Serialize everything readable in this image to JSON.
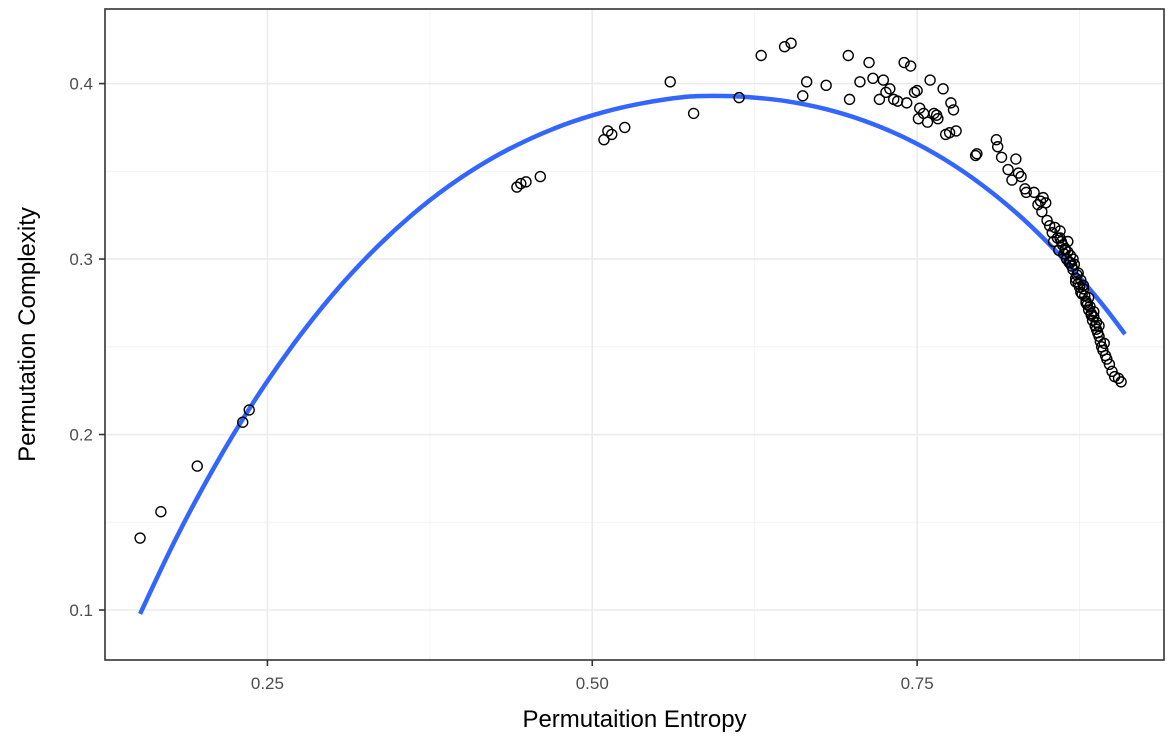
{
  "chart_data": {
    "type": "scatter",
    "title": "",
    "xlabel": "Permutaition Entropy",
    "ylabel": "Permutation Complexity",
    "xlim": [
      0.125,
      0.94
    ],
    "ylim": [
      0.0715,
      0.4425
    ],
    "x_ticks": [
      0.25,
      0.5,
      0.75
    ],
    "x_tick_labels": [
      "0.25",
      "0.50",
      "0.75"
    ],
    "y_ticks": [
      0.1,
      0.2,
      0.3,
      0.4
    ],
    "y_tick_labels": [
      "0.1",
      "0.2",
      "0.3",
      "0.4"
    ],
    "grid": true,
    "legend": "none",
    "colors": {
      "fit_line": "#3366ff",
      "points": "#000000",
      "grid": "#ebebeb",
      "border": "#333333"
    },
    "series": [
      {
        "type": "scatter",
        "x": [
          0.152,
          0.168,
          0.196,
          0.231,
          0.236,
          0.442,
          0.445,
          0.449,
          0.46,
          0.509,
          0.512,
          0.515,
          0.525,
          0.56,
          0.578,
          0.613,
          0.63,
          0.648,
          0.653,
          0.662,
          0.665,
          0.68,
          0.697,
          0.698,
          0.706,
          0.713,
          0.716,
          0.721,
          0.724,
          0.726,
          0.729,
          0.732,
          0.735,
          0.74,
          0.742,
          0.745,
          0.748,
          0.75,
          0.751,
          0.752,
          0.755,
          0.758,
          0.76,
          0.763,
          0.765,
          0.766,
          0.77,
          0.772,
          0.775,
          0.776,
          0.778,
          0.78,
          0.795,
          0.796,
          0.811,
          0.812,
          0.815,
          0.82,
          0.823,
          0.826,
          0.828,
          0.83,
          0.833,
          0.834,
          0.84,
          0.843,
          0.845,
          0.846,
          0.847,
          0.849,
          0.85,
          0.852,
          0.854,
          0.855,
          0.856,
          0.858,
          0.859,
          0.86,
          0.861,
          0.862,
          0.863,
          0.864,
          0.865,
          0.866,
          0.867,
          0.868,
          0.869,
          0.87,
          0.871,
          0.872,
          0.873,
          0.874,
          0.875,
          0.876,
          0.877,
          0.878,
          0.879,
          0.88,
          0.881,
          0.882,
          0.883,
          0.884,
          0.885,
          0.886,
          0.887,
          0.888,
          0.889,
          0.89,
          0.891,
          0.892,
          0.893,
          0.895,
          0.896,
          0.898,
          0.9,
          0.902,
          0.905,
          0.907,
          0.866,
          0.87,
          0.874,
          0.878,
          0.882,
          0.886,
          0.89,
          0.894,
          0.872,
          0.876,
          0.88,
          0.884,
          0.888,
          0.86,
          0.864,
          0.868
        ],
        "y": [
          0.141,
          0.156,
          0.182,
          0.207,
          0.214,
          0.341,
          0.343,
          0.344,
          0.347,
          0.368,
          0.373,
          0.371,
          0.375,
          0.401,
          0.383,
          0.392,
          0.416,
          0.421,
          0.423,
          0.393,
          0.401,
          0.399,
          0.416,
          0.391,
          0.401,
          0.412,
          0.403,
          0.391,
          0.402,
          0.395,
          0.397,
          0.391,
          0.39,
          0.412,
          0.389,
          0.41,
          0.395,
          0.396,
          0.38,
          0.386,
          0.383,
          0.378,
          0.402,
          0.383,
          0.382,
          0.38,
          0.397,
          0.371,
          0.372,
          0.389,
          0.385,
          0.373,
          0.359,
          0.36,
          0.368,
          0.364,
          0.358,
          0.351,
          0.345,
          0.357,
          0.349,
          0.347,
          0.34,
          0.338,
          0.338,
          0.331,
          0.333,
          0.327,
          0.335,
          0.332,
          0.322,
          0.319,
          0.315,
          0.31,
          0.318,
          0.312,
          0.305,
          0.316,
          0.31,
          0.308,
          0.303,
          0.306,
          0.3,
          0.304,
          0.298,
          0.302,
          0.296,
          0.294,
          0.297,
          0.289,
          0.291,
          0.286,
          0.284,
          0.288,
          0.28,
          0.283,
          0.279,
          0.276,
          0.274,
          0.271,
          0.273,
          0.268,
          0.265,
          0.267,
          0.262,
          0.26,
          0.258,
          0.256,
          0.253,
          0.25,
          0.248,
          0.245,
          0.243,
          0.24,
          0.236,
          0.233,
          0.232,
          0.23,
          0.31,
          0.3,
          0.292,
          0.285,
          0.278,
          0.27,
          0.262,
          0.252,
          0.287,
          0.281,
          0.275,
          0.269,
          0.264,
          0.312,
          0.305,
          0.298
        ]
      },
      {
        "type": "line",
        "name": "",
        "x": [
          0.152,
          0.18,
          0.21,
          0.24,
          0.27,
          0.3,
          0.33,
          0.36,
          0.39,
          0.42,
          0.45,
          0.48,
          0.51,
          0.54,
          0.57,
          0.594,
          0.62,
          0.65,
          0.68,
          0.71,
          0.74,
          0.77,
          0.8,
          0.83,
          0.86,
          0.89,
          0.91
        ],
        "y": [
          0.0978,
          0.1413,
          0.1826,
          0.2192,
          0.2514,
          0.2795,
          0.3037,
          0.3244,
          0.3418,
          0.3562,
          0.3678,
          0.377,
          0.384,
          0.389,
          0.3923,
          0.393,
          0.3923,
          0.3899,
          0.3854,
          0.3786,
          0.3693,
          0.3573,
          0.3422,
          0.3239,
          0.302,
          0.2765,
          0.2572
        ]
      }
    ]
  }
}
